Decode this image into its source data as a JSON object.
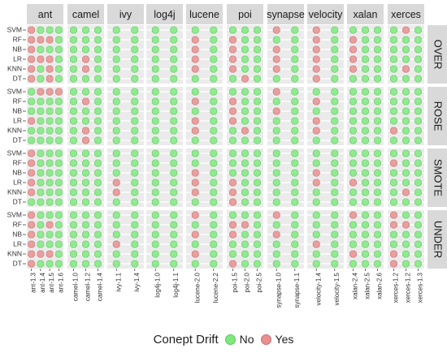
{
  "chart_data": {
    "type": "scatter",
    "title": "",
    "xlabel": "",
    "ylabel": "",
    "grid": true,
    "legend_position": "bottom",
    "legend": {
      "title": "Conept Drift",
      "entries": [
        {
          "label": "No",
          "value": 0
        },
        {
          "label": "Yes",
          "value": 1
        }
      ]
    },
    "colors": {
      "No": "#7fe87f",
      "Yes": "#e88f8f",
      "No_edge": "#5cc95c",
      "Yes_edge": "#c96f6f",
      "panel_bg": "#ebebeb",
      "strip_bg": "#d9d9d9",
      "grid": "#ffffff"
    },
    "projects": [
      {
        "name": "ant",
        "versions": [
          "ant-1.3",
          "ant-1.4",
          "ant-1.5",
          "ant-1.6"
        ]
      },
      {
        "name": "camel",
        "versions": [
          "camel-1.0",
          "camel-1.2",
          "camel-1.4"
        ]
      },
      {
        "name": "ivy",
        "versions": [
          "ivy-1.1",
          "ivy-1.4"
        ]
      },
      {
        "name": "log4j",
        "versions": [
          "log4j-1.0",
          "log4j-1.1"
        ]
      },
      {
        "name": "lucene",
        "versions": [
          "lucene-2.0",
          "lucene-2.2"
        ]
      },
      {
        "name": "poi",
        "versions": [
          "poi-1.5",
          "poi-2.0",
          "poi-2.5"
        ]
      },
      {
        "name": "synapse",
        "versions": [
          "synapse-1.0",
          "synapse-1.1"
        ]
      },
      {
        "name": "velocity",
        "versions": [
          "velocity-1.4",
          "velocity-1.5"
        ]
      },
      {
        "name": "xalan",
        "versions": [
          "xalan-2.4",
          "xalan-2.5",
          "xalan-2.6"
        ]
      },
      {
        "name": "xerces",
        "versions": [
          "xerces-1.2",
          "xerces-1.2",
          "xerces-1.3"
        ]
      }
    ],
    "methods": [
      "OVER",
      "ROSE",
      "SMOTE",
      "UNDER"
    ],
    "classifiers": [
      "SVM",
      "RF",
      "NB",
      "LR",
      "KNN",
      "DT"
    ],
    "drift": {
      "OVER": {
        "ant": [
          [
            1,
            0,
            0,
            0
          ],
          [
            1,
            1,
            1,
            0
          ],
          [
            1,
            0,
            0,
            0
          ],
          [
            1,
            1,
            1,
            0
          ],
          [
            1,
            0,
            1,
            0
          ],
          [
            1,
            0,
            1,
            0
          ]
        ],
        "camel": [
          [
            0,
            0,
            0
          ],
          [
            0,
            0,
            0
          ],
          [
            0,
            0,
            0
          ],
          [
            0,
            1,
            0
          ],
          [
            0,
            1,
            0
          ],
          [
            0,
            0,
            0
          ]
        ],
        "ivy": [
          [
            0,
            0
          ],
          [
            0,
            0
          ],
          [
            0,
            0
          ],
          [
            0,
            0
          ],
          [
            0,
            0
          ],
          [
            0,
            0
          ]
        ],
        "log4j": [
          [
            0,
            0
          ],
          [
            0,
            0
          ],
          [
            0,
            0
          ],
          [
            0,
            0
          ],
          [
            0,
            0
          ],
          [
            0,
            0
          ]
        ],
        "lucene": [
          [
            0,
            0
          ],
          [
            1,
            0
          ],
          [
            1,
            0
          ],
          [
            1,
            0
          ],
          [
            1,
            0
          ],
          [
            0,
            0
          ]
        ],
        "poi": [
          [
            0,
            0,
            0
          ],
          [
            1,
            0,
            0
          ],
          [
            1,
            0,
            0
          ],
          [
            1,
            0,
            0
          ],
          [
            1,
            0,
            0
          ],
          [
            0,
            1,
            0
          ]
        ],
        "synapse": [
          [
            1,
            0
          ],
          [
            0,
            0
          ],
          [
            1,
            0
          ],
          [
            1,
            0
          ],
          [
            1,
            0
          ],
          [
            0,
            0
          ]
        ],
        "velocity": [
          [
            1,
            0
          ],
          [
            1,
            0
          ],
          [
            1,
            0
          ],
          [
            1,
            0
          ],
          [
            1,
            0
          ],
          [
            1,
            0
          ]
        ],
        "xalan": [
          [
            0,
            0,
            0
          ],
          [
            1,
            0,
            0
          ],
          [
            1,
            0,
            0
          ],
          [
            1,
            0,
            0
          ],
          [
            1,
            0,
            0
          ],
          [
            0,
            0,
            0
          ]
        ],
        "xerces": [
          [
            0,
            1,
            0
          ],
          [
            0,
            0,
            0
          ],
          [
            0,
            0,
            0
          ],
          [
            0,
            0,
            0
          ],
          [
            0,
            1,
            0
          ],
          [
            0,
            0,
            0
          ]
        ]
      },
      "ROSE": {
        "ant": [
          [
            0,
            1,
            1,
            1
          ],
          [
            0,
            0,
            0,
            0
          ],
          [
            0,
            0,
            0,
            0
          ],
          [
            1,
            0,
            0,
            0
          ],
          [
            0,
            0,
            0,
            0
          ],
          [
            0,
            0,
            0,
            0
          ]
        ],
        "camel": [
          [
            0,
            0,
            0
          ],
          [
            0,
            1,
            0
          ],
          [
            0,
            0,
            0
          ],
          [
            0,
            0,
            0
          ],
          [
            0,
            1,
            0
          ],
          [
            0,
            1,
            0
          ]
        ],
        "ivy": [
          [
            0,
            0
          ],
          [
            0,
            0
          ],
          [
            0,
            0
          ],
          [
            0,
            0
          ],
          [
            0,
            0
          ],
          [
            0,
            0
          ]
        ],
        "log4j": [
          [
            0,
            0
          ],
          [
            0,
            0
          ],
          [
            0,
            0
          ],
          [
            0,
            0
          ],
          [
            0,
            0
          ],
          [
            0,
            0
          ]
        ],
        "lucene": [
          [
            0,
            0
          ],
          [
            1,
            0
          ],
          [
            0,
            0
          ],
          [
            1,
            0
          ],
          [
            1,
            0
          ],
          [
            0,
            0
          ]
        ],
        "poi": [
          [
            0,
            0,
            0
          ],
          [
            1,
            0,
            0
          ],
          [
            1,
            0,
            0
          ],
          [
            1,
            0,
            0
          ],
          [
            0,
            1,
            0
          ],
          [
            0,
            0,
            0
          ]
        ],
        "synapse": [
          [
            1,
            0
          ],
          [
            0,
            0
          ],
          [
            1,
            0
          ],
          [
            0,
            0
          ],
          [
            0,
            0
          ],
          [
            0,
            0
          ]
        ],
        "velocity": [
          [
            0,
            0
          ],
          [
            1,
            0
          ],
          [
            0,
            0
          ],
          [
            1,
            0
          ],
          [
            1,
            0
          ],
          [
            0,
            0
          ]
        ],
        "xalan": [
          [
            0,
            0,
            0
          ],
          [
            0,
            0,
            0
          ],
          [
            0,
            0,
            0
          ],
          [
            0,
            0,
            0
          ],
          [
            0,
            0,
            0
          ],
          [
            0,
            0,
            0
          ]
        ],
        "xerces": [
          [
            0,
            0,
            0
          ],
          [
            0,
            0,
            0
          ],
          [
            0,
            0,
            0
          ],
          [
            0,
            0,
            0
          ],
          [
            1,
            0,
            0
          ],
          [
            0,
            0,
            0
          ]
        ]
      },
      "SMOTE": {
        "ant": [
          [
            1,
            0,
            0,
            0
          ],
          [
            1,
            0,
            0,
            0
          ],
          [
            1,
            0,
            0,
            0
          ],
          [
            1,
            0,
            0,
            0
          ],
          [
            1,
            0,
            0,
            0
          ],
          [
            0,
            0,
            0,
            0
          ]
        ],
        "camel": [
          [
            0,
            0,
            0
          ],
          [
            0,
            0,
            0
          ],
          [
            0,
            0,
            0
          ],
          [
            0,
            0,
            0
          ],
          [
            0,
            0,
            0
          ],
          [
            0,
            0,
            0
          ]
        ],
        "ivy": [
          [
            0,
            0
          ],
          [
            0,
            0
          ],
          [
            0,
            0
          ],
          [
            1,
            0
          ],
          [
            1,
            0
          ],
          [
            0,
            0
          ]
        ],
        "log4j": [
          [
            0,
            0
          ],
          [
            0,
            0
          ],
          [
            0,
            0
          ],
          [
            0,
            0
          ],
          [
            0,
            0
          ],
          [
            0,
            0
          ]
        ],
        "lucene": [
          [
            0,
            0
          ],
          [
            0,
            0
          ],
          [
            1,
            0
          ],
          [
            1,
            0
          ],
          [
            1,
            0
          ],
          [
            0,
            0
          ]
        ],
        "poi": [
          [
            0,
            0,
            0
          ],
          [
            0,
            0,
            0
          ],
          [
            0,
            0,
            0
          ],
          [
            1,
            0,
            0
          ],
          [
            1,
            0,
            0
          ],
          [
            1,
            0,
            0
          ]
        ],
        "synapse": [
          [
            0,
            0
          ],
          [
            0,
            0
          ],
          [
            0,
            0
          ],
          [
            0,
            0
          ],
          [
            0,
            0
          ],
          [
            0,
            0
          ]
        ],
        "velocity": [
          [
            0,
            0
          ],
          [
            0,
            0
          ],
          [
            1,
            0
          ],
          [
            1,
            0
          ],
          [
            0,
            0
          ],
          [
            0,
            0
          ]
        ],
        "xalan": [
          [
            0,
            0,
            0
          ],
          [
            0,
            0,
            0
          ],
          [
            0,
            0,
            0
          ],
          [
            1,
            0,
            0
          ],
          [
            0,
            0,
            0
          ],
          [
            0,
            0,
            0
          ]
        ],
        "xerces": [
          [
            0,
            0,
            0
          ],
          [
            1,
            0,
            0
          ],
          [
            0,
            0,
            0
          ],
          [
            0,
            0,
            0
          ],
          [
            0,
            1,
            0
          ],
          [
            0,
            0,
            0
          ]
        ]
      },
      "UNDER": {
        "ant": [
          [
            1,
            0,
            0,
            0
          ],
          [
            1,
            0,
            1,
            0
          ],
          [
            1,
            0,
            0,
            0
          ],
          [
            1,
            0,
            0,
            0
          ],
          [
            1,
            1,
            1,
            0
          ],
          [
            1,
            0,
            0,
            0
          ]
        ],
        "camel": [
          [
            0,
            0,
            0
          ],
          [
            0,
            0,
            0
          ],
          [
            0,
            0,
            0
          ],
          [
            0,
            0,
            0
          ],
          [
            0,
            0,
            0
          ],
          [
            0,
            0,
            0
          ]
        ],
        "ivy": [
          [
            0,
            0
          ],
          [
            0,
            0
          ],
          [
            0,
            0
          ],
          [
            1,
            0
          ],
          [
            0,
            0
          ],
          [
            0,
            0
          ]
        ],
        "log4j": [
          [
            0,
            0
          ],
          [
            0,
            0
          ],
          [
            0,
            0
          ],
          [
            0,
            0
          ],
          [
            0,
            0
          ],
          [
            0,
            0
          ]
        ],
        "lucene": [
          [
            1,
            0
          ],
          [
            0,
            0
          ],
          [
            1,
            0
          ],
          [
            0,
            0
          ],
          [
            1,
            0
          ],
          [
            0,
            0
          ]
        ],
        "poi": [
          [
            0,
            0,
            0
          ],
          [
            1,
            1,
            0
          ],
          [
            1,
            0,
            0
          ],
          [
            0,
            0,
            0
          ],
          [
            0,
            0,
            0
          ],
          [
            1,
            0,
            0
          ]
        ],
        "synapse": [
          [
            1,
            0
          ],
          [
            0,
            0
          ],
          [
            1,
            0
          ],
          [
            0,
            0
          ],
          [
            0,
            0
          ],
          [
            0,
            0
          ]
        ],
        "velocity": [
          [
            0,
            0
          ],
          [
            0,
            0
          ],
          [
            0,
            0
          ],
          [
            1,
            0
          ],
          [
            0,
            0
          ],
          [
            0,
            0
          ]
        ],
        "xalan": [
          [
            1,
            0,
            0
          ],
          [
            0,
            0,
            0
          ],
          [
            0,
            0,
            0
          ],
          [
            0,
            0,
            0
          ],
          [
            1,
            0,
            0
          ],
          [
            0,
            0,
            0
          ]
        ],
        "xerces": [
          [
            1,
            0,
            0
          ],
          [
            1,
            1,
            0
          ],
          [
            0,
            0,
            0
          ],
          [
            0,
            0,
            0
          ],
          [
            1,
            0,
            0
          ],
          [
            1,
            0,
            0
          ]
        ]
      }
    }
  }
}
